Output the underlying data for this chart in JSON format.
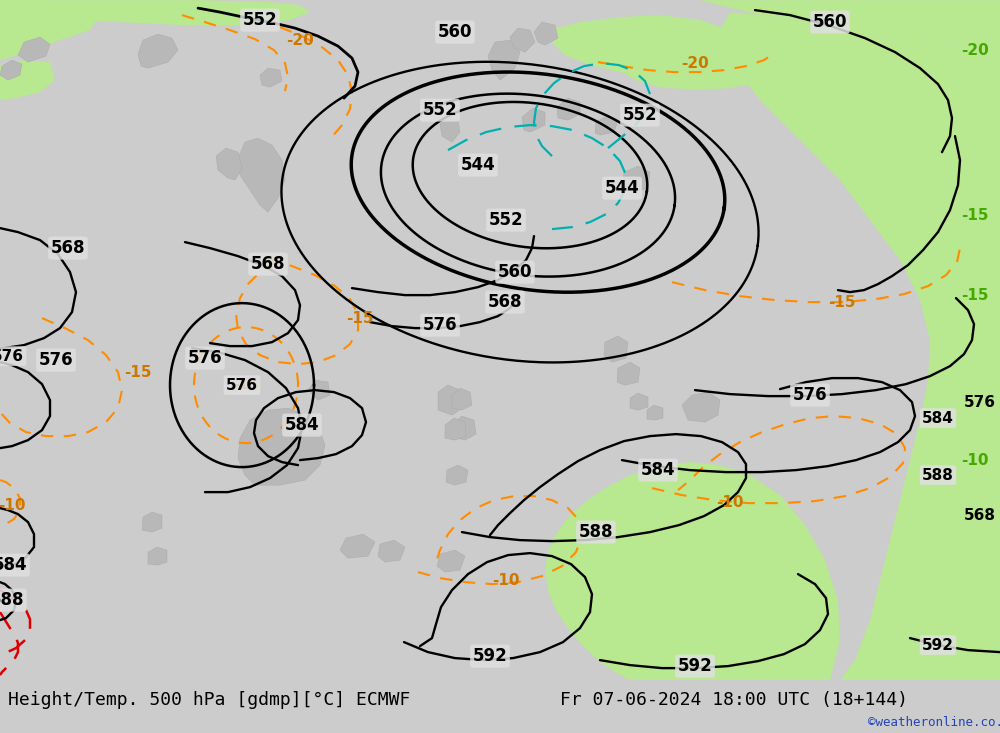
{
  "title_left": "Height/Temp. 500 hPa [gdmp][°C] ECMWF",
  "title_right": "Fr 07-06-2024 18:00 UTC (18+144)",
  "watermark": "©weatheronline.co.uk",
  "bg_color": "#e0e0e0",
  "green_color": "#b8e890",
  "contour_color_black": "#000000",
  "contour_color_orange": "#ff8c00",
  "contour_color_red": "#dd0000",
  "contour_color_cyan": "#00b0b0",
  "footer_bg": "#cccccc",
  "watermark_color": "#2244bb",
  "title_fontsize": 13,
  "label_fontsize": 11,
  "label_fontsize_sm": 10
}
